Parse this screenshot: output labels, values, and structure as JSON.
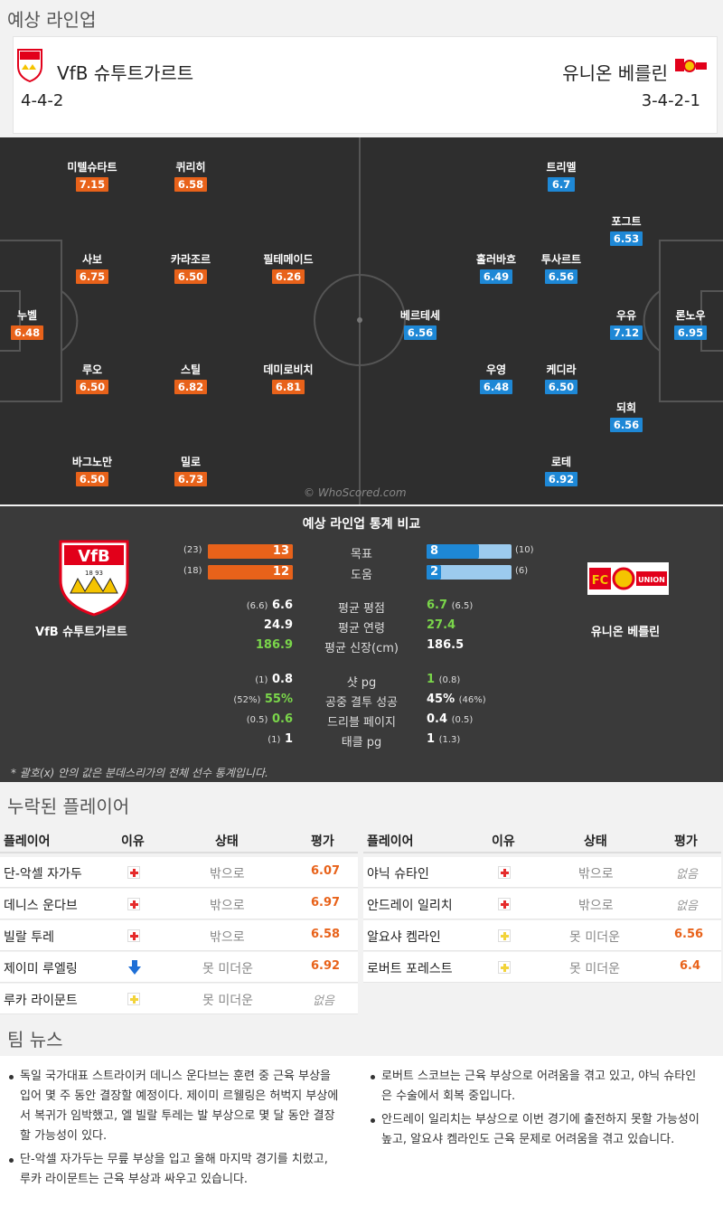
{
  "section_lineup": "예상 라인업",
  "home": {
    "name": "VfB 슈투트가르트",
    "formation": "4-4-2",
    "badge_text": "VfB",
    "badge_years": "18 93"
  },
  "away": {
    "name": "유니온 베를린",
    "formation": "3-4-2-1",
    "badge_text": "FC UNION"
  },
  "pitch": {
    "home_players": [
      {
        "name": "누벨",
        "rating": "6.48"
      },
      {
        "name": "사보",
        "rating": "6.75"
      },
      {
        "name": "루오",
        "rating": "6.50"
      },
      {
        "name": "바그노만",
        "rating": "6.50"
      },
      {
        "name": "미텔슈타트",
        "rating": "7.15"
      },
      {
        "name": "카라조르",
        "rating": "6.50"
      },
      {
        "name": "스틸",
        "rating": "6.82"
      },
      {
        "name": "퀴리히",
        "rating": "6.58"
      },
      {
        "name": "밀로",
        "rating": "6.73"
      },
      {
        "name": "필테메이드",
        "rating": "6.26"
      },
      {
        "name": "데미로비치",
        "rating": "6.81"
      }
    ],
    "away_players": [
      {
        "name": "론노우",
        "rating": "6.95"
      },
      {
        "name": "우유",
        "rating": "7.12"
      },
      {
        "name": "포그트",
        "rating": "6.53"
      },
      {
        "name": "되희",
        "rating": "6.56"
      },
      {
        "name": "트리멜",
        "rating": "6.7"
      },
      {
        "name": "투사르트",
        "rating": "6.56"
      },
      {
        "name": "케디라",
        "rating": "6.50"
      },
      {
        "name": "로테",
        "rating": "6.92"
      },
      {
        "name": "홀러바흐",
        "rating": "6.49"
      },
      {
        "name": "우영",
        "rating": "6.48"
      },
      {
        "name": "베르테세",
        "rating": "6.56"
      }
    ],
    "watermark": "© WhoScored.com"
  },
  "stats": {
    "title": "예상 라인업 통계 비교",
    "goals": {
      "label": "목표",
      "home": 13,
      "home_total": "(23)",
      "away": 8,
      "away_total": "(10)"
    },
    "assists": {
      "label": "도움",
      "home": 12,
      "home_total": "(18)",
      "away": 2,
      "away_total": "(6)"
    },
    "rows": [
      {
        "label": "평균 평점",
        "home": "6.6",
        "home_sub": "(6.6)",
        "away": "6.7",
        "away_sub": "(6.5)"
      },
      {
        "label": "평균 연령",
        "home": "24.9",
        "home_sub": "",
        "away": "27.4",
        "away_sub": ""
      },
      {
        "label": "평균 신장(cm)",
        "home": "186.9",
        "home_sub": "",
        "away": "186.5",
        "away_sub": ""
      },
      {
        "label": "샷 pg",
        "home": "0.8",
        "home_sub": "(1)",
        "away": "1",
        "away_sub": "(0.8)"
      },
      {
        "label": "공중 결투 성공",
        "home": "55%",
        "home_sub": "(52%)",
        "away": "45%",
        "away_sub": "(46%)"
      },
      {
        "label": "드리블 페이지",
        "home": "0.6",
        "home_sub": "(0.5)",
        "away": "0.4",
        "away_sub": "(0.5)"
      },
      {
        "label": "태클 pg",
        "home": "1",
        "home_sub": "(1)",
        "away": "1",
        "away_sub": "(1.3)"
      }
    ],
    "note": "* 괄호(x) 안의 값은 분데스리가의 전체 선수 통계입니다.",
    "colors": {
      "home": "#e8621a",
      "away": "#1e88d6",
      "home_light": "#f4b59a",
      "away_light": "#9ccbee",
      "better": "#7ad64a"
    }
  },
  "missing": {
    "title": "누락된 플레이어",
    "headers": {
      "player": "플레이어",
      "reason": "이유",
      "status": "상태",
      "rating": "평가"
    },
    "home": [
      {
        "player": "단-악셀 자가두",
        "reason": "injury",
        "status": "밖으로",
        "rating": "6.07"
      },
      {
        "player": "데니스 운다브",
        "reason": "injury",
        "status": "밖으로",
        "rating": "6.97"
      },
      {
        "player": "빌랄 투레",
        "reason": "injury",
        "status": "밖으로",
        "rating": "6.58"
      },
      {
        "player": "제이미 루엘링",
        "reason": "down-arrow",
        "status": "못 미더운",
        "rating": "6.92"
      },
      {
        "player": "루카 라이문트",
        "reason": "doubtful",
        "status": "못 미더운",
        "rating": "없음"
      }
    ],
    "away": [
      {
        "player": "야닉 슈타인",
        "reason": "injury",
        "status": "밖으로",
        "rating": "없음"
      },
      {
        "player": "안드레이 일리치",
        "reason": "injury",
        "status": "밖으로",
        "rating": "없음"
      },
      {
        "player": "알요샤 켐라인",
        "reason": "doubtful",
        "status": "못 미더운",
        "rating": "6.56"
      },
      {
        "player": "로버트 포레스트",
        "reason": "doubtful",
        "status": "못 미더운",
        "rating": "6.4"
      }
    ]
  },
  "news": {
    "title": "팀 뉴스",
    "home": [
      "독일 국가대표 스트라이커 데니스 운다브는 훈련 중 근육 부상을 입어 몇 주 동안 결장할 예정이다. 제이미 르웰링은 허벅지 부상에서 복귀가 임박했고, 엘 빌랄 투레는 발 부상으로 몇 달 동안 결장할 가능성이 있다.",
      "단-악셀 자가두는 무릎 부상을 입고 올해 마지막 경기를 치렀고, 루카 라이문트는 근육 부상과 싸우고 있습니다."
    ],
    "away": [
      "로버트 스코브는 근육 부상으로 어려움을 겪고 있고, 야닉 슈타인은 수술에서 회복 중입니다.",
      "안드레이 일리치는 부상으로 이번 경기에 출전하지 못할 가능성이 높고, 알요샤 켐라인도 근육 문제로 어려움을 겪고 있습니다."
    ]
  }
}
